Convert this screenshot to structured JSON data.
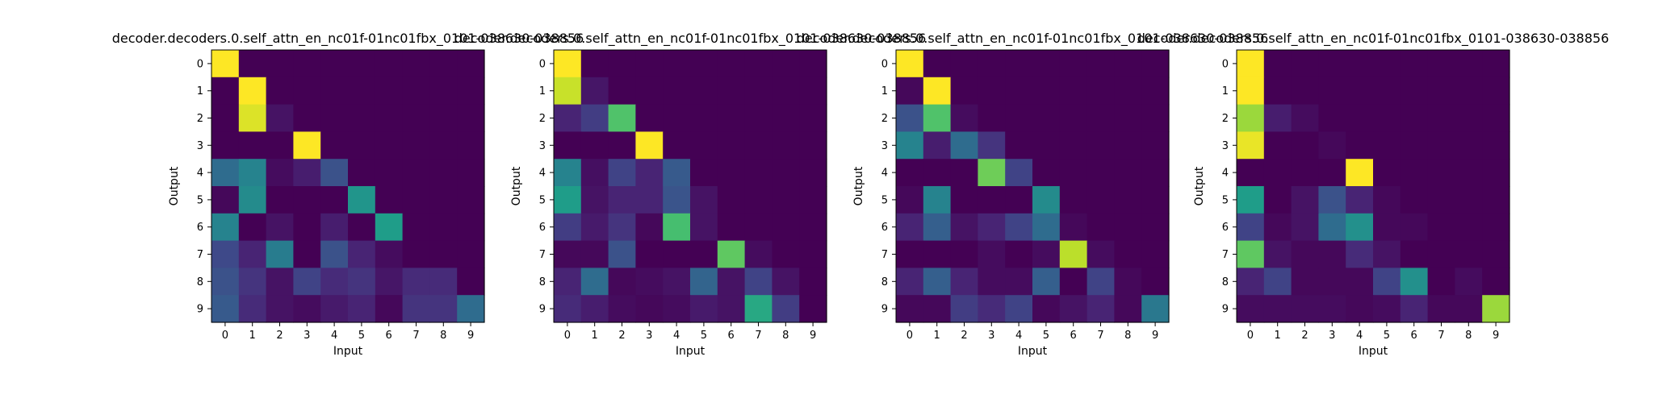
{
  "figure": {
    "colormap": "viridis",
    "color_low": "#440154",
    "color_high": "#fde725"
  },
  "chart_data": [
    {
      "type": "heatmap",
      "title": "decoder.decoders.0.self_attn_en_nc01f-01nc01fbx_0101-038630-038856",
      "xlabel": "Input",
      "ylabel": "Output",
      "x_ticks": [
        "0",
        "1",
        "2",
        "3",
        "4",
        "5",
        "6",
        "7",
        "8",
        "9"
      ],
      "y_ticks": [
        "0",
        "1",
        "2",
        "3",
        "4",
        "5",
        "6",
        "7",
        "8",
        "9"
      ],
      "vmin": 0,
      "vmax": 1,
      "values": [
        [
          1.0,
          0,
          0,
          0,
          0,
          0,
          0,
          0,
          0,
          0
        ],
        [
          0,
          1.0,
          0,
          0,
          0,
          0,
          0,
          0,
          0,
          0
        ],
        [
          0,
          0.95,
          0.05,
          0,
          0,
          0,
          0,
          0,
          0,
          0
        ],
        [
          0,
          0,
          0,
          1.0,
          0,
          0,
          0,
          0,
          0,
          0
        ],
        [
          0.35,
          0.45,
          0.03,
          0.08,
          0.25,
          0,
          0,
          0,
          0,
          0
        ],
        [
          0.02,
          0.48,
          0,
          0,
          0,
          0.52,
          0,
          0,
          0,
          0
        ],
        [
          0.45,
          0,
          0.05,
          0,
          0.08,
          0,
          0.55,
          0,
          0,
          0
        ],
        [
          0.22,
          0.1,
          0.42,
          0,
          0.25,
          0.1,
          0.03,
          0,
          0,
          0
        ],
        [
          0.25,
          0.15,
          0.05,
          0.2,
          0.12,
          0.15,
          0.06,
          0.12,
          0.12,
          0
        ],
        [
          0.28,
          0.12,
          0.05,
          0.03,
          0.07,
          0.1,
          0.02,
          0.15,
          0.15,
          0.35
        ]
      ]
    },
    {
      "type": "heatmap",
      "title": "decoder.decoders.0.self_attn_en_nc01f-01nc01fbx_0101-038630-038856",
      "xlabel": "Input",
      "ylabel": "Output",
      "x_ticks": [
        "0",
        "1",
        "2",
        "3",
        "4",
        "5",
        "6",
        "7",
        "8",
        "9"
      ],
      "y_ticks": [
        "0",
        "1",
        "2",
        "3",
        "4",
        "5",
        "6",
        "7",
        "8",
        "9"
      ],
      "vmin": 0,
      "vmax": 1,
      "values": [
        [
          1.0,
          0,
          0,
          0,
          0,
          0,
          0,
          0,
          0,
          0
        ],
        [
          0.92,
          0.06,
          0,
          0,
          0,
          0,
          0,
          0,
          0,
          0
        ],
        [
          0.1,
          0.18,
          0.72,
          0,
          0,
          0,
          0,
          0,
          0,
          0
        ],
        [
          0,
          0,
          0,
          1.0,
          0,
          0,
          0,
          0,
          0,
          0
        ],
        [
          0.45,
          0.04,
          0.2,
          0.1,
          0.28,
          0,
          0,
          0,
          0,
          0
        ],
        [
          0.55,
          0.05,
          0.1,
          0.1,
          0.26,
          0.05,
          0,
          0,
          0,
          0
        ],
        [
          0.18,
          0.07,
          0.15,
          0.02,
          0.7,
          0.05,
          0,
          0,
          0,
          0
        ],
        [
          0.02,
          0.02,
          0.25,
          0,
          0,
          0,
          0.75,
          0.03,
          0,
          0
        ],
        [
          0.1,
          0.35,
          0.02,
          0.03,
          0.05,
          0.32,
          0.05,
          0.2,
          0.05,
          0
        ],
        [
          0.12,
          0.08,
          0.03,
          0.02,
          0.03,
          0.07,
          0.05,
          0.6,
          0.18,
          0
        ]
      ]
    },
    {
      "type": "heatmap",
      "title": "decoder.decoders.0.self_attn_en_nc01f-01nc01fbx_0101-038630-038856",
      "xlabel": "Input",
      "ylabel": "Output",
      "x_ticks": [
        "0",
        "1",
        "2",
        "3",
        "4",
        "5",
        "6",
        "7",
        "8",
        "9"
      ],
      "y_ticks": [
        "0",
        "1",
        "2",
        "3",
        "4",
        "5",
        "6",
        "7",
        "8",
        "9"
      ],
      "vmin": 0,
      "vmax": 1,
      "values": [
        [
          1.0,
          0,
          0,
          0,
          0,
          0,
          0,
          0,
          0,
          0
        ],
        [
          0.02,
          1.0,
          0,
          0,
          0,
          0,
          0,
          0,
          0,
          0
        ],
        [
          0.25,
          0.72,
          0.03,
          0,
          0,
          0,
          0,
          0,
          0,
          0
        ],
        [
          0.45,
          0.08,
          0.35,
          0.15,
          0,
          0,
          0,
          0,
          0,
          0
        ],
        [
          0,
          0,
          0,
          0.78,
          0.2,
          0,
          0,
          0,
          0,
          0
        ],
        [
          0.02,
          0.45,
          0,
          0,
          0,
          0.48,
          0,
          0,
          0,
          0
        ],
        [
          0.1,
          0.3,
          0.05,
          0.1,
          0.2,
          0.35,
          0.02,
          0,
          0,
          0
        ],
        [
          0,
          0,
          0,
          0.03,
          0,
          0.03,
          0.9,
          0.03,
          0,
          0
        ],
        [
          0.1,
          0.3,
          0.1,
          0.03,
          0.03,
          0.3,
          0,
          0.2,
          0.02,
          0
        ],
        [
          0.02,
          0.02,
          0.18,
          0.12,
          0.2,
          0.02,
          0.05,
          0.1,
          0.02,
          0.4
        ]
      ]
    },
    {
      "type": "heatmap",
      "title": "decoder.decoders.0.self_attn_en_nc01f-01nc01fbx_0101-038630-038856",
      "xlabel": "Input",
      "ylabel": "Output",
      "x_ticks": [
        "0",
        "1",
        "2",
        "3",
        "4",
        "5",
        "6",
        "7",
        "8",
        "9"
      ],
      "y_ticks": [
        "0",
        "1",
        "2",
        "3",
        "4",
        "5",
        "6",
        "7",
        "8",
        "9"
      ],
      "vmin": 0,
      "vmax": 1,
      "values": [
        [
          1.0,
          0,
          0,
          0,
          0,
          0,
          0,
          0,
          0,
          0
        ],
        [
          1.0,
          0,
          0,
          0,
          0,
          0,
          0,
          0,
          0,
          0
        ],
        [
          0.85,
          0.08,
          0.03,
          0,
          0,
          0,
          0,
          0,
          0,
          0
        ],
        [
          0.97,
          0,
          0,
          0.02,
          0,
          0,
          0,
          0,
          0,
          0
        ],
        [
          0,
          0,
          0,
          0,
          1.0,
          0,
          0,
          0,
          0,
          0
        ],
        [
          0.55,
          0,
          0.05,
          0.25,
          0.1,
          0.02,
          0,
          0,
          0,
          0
        ],
        [
          0.2,
          0.02,
          0.05,
          0.35,
          0.5,
          0.02,
          0.02,
          0,
          0,
          0
        ],
        [
          0.75,
          0.05,
          0.02,
          0.02,
          0.12,
          0.05,
          0,
          0,
          0,
          0
        ],
        [
          0.1,
          0.2,
          0.02,
          0.02,
          0.02,
          0.2,
          0.5,
          0,
          0.03,
          0
        ],
        [
          0.03,
          0.03,
          0.03,
          0.03,
          0.02,
          0.03,
          0.1,
          0.02,
          0.02,
          0.85
        ]
      ]
    }
  ]
}
